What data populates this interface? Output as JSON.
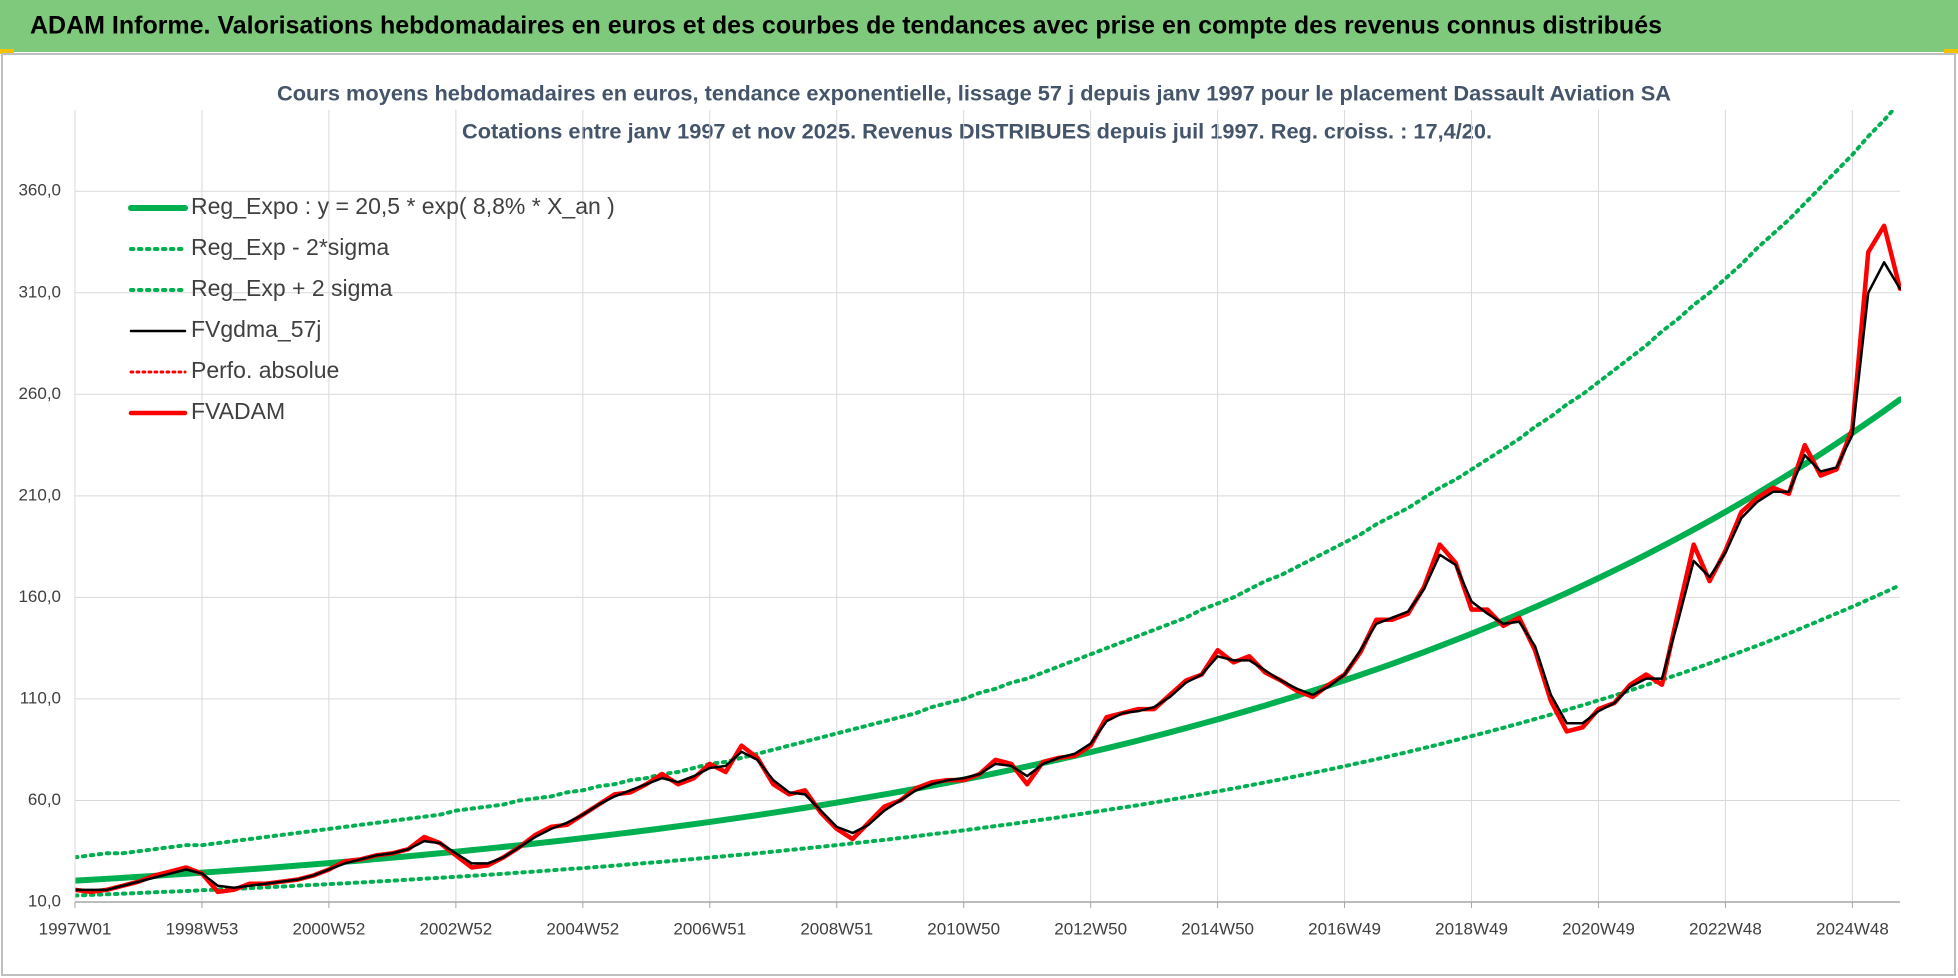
{
  "header": {
    "title": "ADAM Informe. Valorisations hebdomadaires en euros et des courbes de tendances avec prise en compte des revenus connus distribués"
  },
  "chart_data": {
    "type": "line",
    "title": "Cours moyens hebdomadaires en euros, tendance exponentielle, lissage 57 j depuis janv 1997 pour le placement Dassault Aviation SA",
    "subtitle": "Cotations entre janv 1997 et nov 2025. Revenus DISTRIBUES depuis juil 1997. Reg. croiss. : 17,4/20.",
    "categories": [
      "1997W01",
      null,
      null,
      null,
      null,
      null,
      null,
      null,
      "1998W53",
      null,
      null,
      null,
      null,
      null,
      null,
      null,
      "2000W52",
      null,
      null,
      null,
      null,
      null,
      null,
      null,
      "2002W52",
      null,
      null,
      null,
      null,
      null,
      null,
      null,
      "2004W52",
      null,
      null,
      null,
      null,
      null,
      null,
      null,
      "2006W51",
      null,
      null,
      null,
      null,
      null,
      null,
      null,
      "2008W51",
      null,
      null,
      null,
      null,
      null,
      null,
      null,
      "2010W50",
      null,
      null,
      null,
      null,
      null,
      null,
      null,
      "2012W50",
      null,
      null,
      null,
      null,
      null,
      null,
      null,
      "2014W50",
      null,
      null,
      null,
      null,
      null,
      null,
      null,
      "2016W49",
      null,
      null,
      null,
      null,
      null,
      null,
      null,
      "2018W49",
      null,
      null,
      null,
      null,
      null,
      null,
      null,
      "2020W49",
      null,
      null,
      null,
      null,
      null,
      null,
      null,
      "2022W48",
      null,
      null,
      null,
      null,
      null,
      null,
      null,
      "2024W48",
      null,
      null,
      null
    ],
    "ylim": [
      10,
      400
    ],
    "yticks": [
      {
        "value": 10,
        "label": "10,0"
      },
      {
        "value": 60,
        "label": "60,0"
      },
      {
        "value": 110,
        "label": "110,0"
      },
      {
        "value": 160,
        "label": "160,0"
      },
      {
        "value": 210,
        "label": "210,0"
      },
      {
        "value": 260,
        "label": "260,0"
      },
      {
        "value": 310,
        "label": "310,0"
      },
      {
        "value": 360,
        "label": "360,0"
      }
    ],
    "grid": true,
    "legend": "upper left",
    "series": [
      {
        "name": "Reg_Expo : y = 20,5 * exp( 8,8% *  X_an )",
        "color": "#00b050",
        "style": "solid",
        "width": 6,
        "values": [
          20.5,
          20.96,
          21.42,
          21.9,
          22.39,
          22.88,
          23.39,
          23.91,
          24.45,
          24.99,
          25.55,
          26.12,
          26.7,
          27.29,
          27.9,
          28.52,
          29.15,
          29.8,
          30.46,
          31.14,
          31.83,
          32.54,
          33.26,
          34.0,
          34.76,
          35.53,
          36.32,
          37.13,
          37.96,
          38.8,
          39.67,
          40.55,
          41.45,
          42.37,
          43.32,
          44.28,
          45.26,
          46.27,
          47.3,
          48.35,
          49.42,
          50.52,
          51.64,
          52.79,
          53.97,
          55.17,
          56.4,
          57.65,
          58.94,
          60.25,
          61.59,
          62.96,
          64.36,
          65.79,
          67.26,
          68.75,
          70.28,
          71.84,
          73.44,
          75.07,
          76.75,
          78.46,
          80.2,
          81.98,
          83.81,
          85.67,
          87.58,
          89.53,
          91.53,
          93.56,
          95.65,
          97.77,
          99.95,
          102.17,
          104.45,
          106.77,
          109.14,
          111.57,
          114.05,
          116.58,
          119.18,
          121.83,
          124.54,
          127.31,
          130.15,
          133.04,
          136.01,
          139.03,
          142.12,
          145.28,
          148.52,
          151.82,
          155.2,
          158.65,
          162.18,
          165.79,
          169.48,
          173.25,
          177.11,
          181.05,
          185.07,
          189.19,
          193.4,
          197.7,
          202.1,
          206.6,
          211.2,
          215.89,
          220.69,
          225.6,
          230.62,
          235.75,
          240.99,
          246.35,
          251.83,
          257.44
        ]
      },
      {
        "name": "Reg_Exp - 2*sigma",
        "color": "#00b050",
        "style": "dotted",
        "width": 4,
        "values": [
          13.2,
          13.5,
          13.8,
          14.1,
          14.4,
          14.8,
          15.1,
          15.4,
          15.8,
          16.1,
          16.5,
          16.8,
          17.2,
          17.6,
          18.0,
          18.4,
          18.8,
          19.2,
          19.6,
          20.1,
          20.5,
          21.0,
          21.5,
          21.9,
          22.4,
          22.9,
          23.4,
          23.9,
          24.5,
          25.0,
          25.6,
          26.2,
          26.7,
          27.3,
          27.9,
          28.6,
          29.2,
          29.8,
          30.5,
          31.2,
          31.9,
          32.6,
          33.3,
          34.0,
          34.8,
          35.6,
          36.4,
          37.2,
          38.0,
          38.9,
          39.7,
          40.6,
          41.5,
          42.4,
          43.4,
          44.3,
          45.3,
          46.3,
          47.4,
          48.4,
          49.5,
          50.6,
          51.7,
          52.9,
          54.1,
          55.3,
          56.5,
          57.7,
          59.0,
          60.3,
          61.7,
          63.1,
          64.5,
          65.9,
          67.4,
          68.9,
          70.4,
          72.0,
          73.6,
          75.2,
          76.9,
          78.6,
          80.3,
          82.1,
          83.9,
          85.8,
          87.7,
          89.7,
          91.7,
          93.7,
          95.8,
          97.9,
          100.1,
          102.3,
          104.6,
          106.9,
          109.3,
          111.7,
          114.2,
          116.8,
          119.4,
          122.0,
          124.7,
          127.5,
          130.4,
          133.3,
          136.2,
          139.2,
          142.3,
          145.5,
          148.8,
          152.1,
          155.4,
          158.9,
          162.4,
          166.0
        ]
      },
      {
        "name": "Reg_Exp + 2 sigma",
        "color": "#00b050",
        "style": "dotted",
        "width": 4,
        "values": [
          32,
          33,
          34,
          34,
          35,
          36,
          37,
          38,
          38,
          39,
          40,
          41,
          42,
          43,
          44,
          45,
          46,
          47,
          48,
          49,
          50,
          51,
          52,
          53,
          55,
          56,
          57,
          58,
          60,
          61,
          62,
          64,
          65,
          67,
          68,
          70,
          71,
          73,
          74,
          76,
          78,
          79,
          81,
          83,
          85,
          87,
          89,
          91,
          93,
          95,
          97,
          99,
          101,
          103,
          106,
          108,
          110,
          113,
          115,
          118,
          120,
          123,
          126,
          129,
          132,
          135,
          138,
          141,
          144,
          147,
          150,
          154,
          157,
          160,
          164,
          168,
          171,
          175,
          179,
          183,
          187,
          191,
          196,
          200,
          204,
          209,
          214,
          218,
          223,
          228,
          233,
          238,
          244,
          249,
          255,
          260,
          266,
          272,
          278,
          284,
          291,
          297,
          304,
          310,
          317,
          324,
          332,
          339,
          346,
          354,
          362,
          370,
          378,
          387,
          395,
          404
        ]
      },
      {
        "name": "FVgdma_57j",
        "color": "#000000",
        "style": "solid",
        "width": 2.5,
        "values": [
          16,
          16,
          16,
          18,
          20,
          22,
          24,
          26,
          24,
          18,
          17,
          18,
          19,
          20,
          21,
          23,
          26,
          29,
          31,
          33,
          34,
          36,
          40,
          39,
          34,
          29,
          29,
          32,
          37,
          42,
          46,
          49,
          53,
          58,
          62,
          65,
          68,
          71,
          69,
          72,
          76,
          77,
          84,
          80,
          70,
          64,
          63,
          55,
          47,
          44,
          48,
          55,
          60,
          65,
          68,
          70,
          71,
          73,
          78,
          77,
          72,
          78,
          81,
          83,
          88,
          99,
          103,
          104,
          106,
          111,
          118,
          122,
          131,
          129,
          129,
          124,
          119,
          115,
          112,
          116,
          122,
          134,
          147,
          150,
          153,
          164,
          181,
          176,
          158,
          152,
          147,
          148,
          136,
          112,
          98,
          98,
          104,
          108,
          116,
          120,
          120,
          148,
          178,
          170,
          182,
          199,
          207,
          212,
          212,
          230,
          222,
          224,
          240,
          310,
          325,
          312
        ]
      },
      {
        "name": "Perfo. absolue",
        "color": "#ff0000",
        "style": "dotted",
        "width": 3,
        "values": [
          16,
          15,
          16,
          18,
          20,
          23,
          25,
          27,
          24,
          15,
          16,
          19,
          19,
          20,
          21,
          23,
          26,
          30,
          31,
          33,
          34,
          36,
          42,
          39,
          33,
          27,
          28,
          32,
          37,
          43,
          47,
          48,
          53,
          58,
          63,
          64,
          68,
          73,
          68,
          71,
          78,
          74,
          87,
          81,
          68,
          63,
          65,
          54,
          46,
          41,
          49,
          57,
          60,
          66,
          69,
          70,
          70,
          73,
          80,
          78,
          68,
          79,
          81,
          82,
          87,
          101,
          103,
          105,
          105,
          112,
          119,
          122,
          134,
          128,
          131,
          123,
          119,
          114,
          111,
          117,
          122,
          133,
          149,
          149,
          152,
          165,
          186,
          177,
          154,
          154,
          146,
          150,
          134,
          109,
          94,
          96,
          105,
          108,
          117,
          122,
          117,
          152,
          186,
          168,
          183,
          202,
          209,
          214,
          211,
          235,
          220,
          223,
          243,
          330,
          343,
          312
        ]
      },
      {
        "name": "FVADAM",
        "color": "#ff0000",
        "style": "solid",
        "width": 4.5,
        "values": [
          16,
          15,
          16,
          18,
          20,
          23,
          25,
          27,
          24,
          15,
          16,
          19,
          19,
          20,
          21,
          23,
          26,
          30,
          31,
          33,
          34,
          36,
          42,
          39,
          33,
          27,
          28,
          32,
          37,
          43,
          47,
          48,
          53,
          58,
          63,
          64,
          68,
          73,
          68,
          71,
          78,
          74,
          87,
          81,
          68,
          63,
          65,
          54,
          46,
          41,
          49,
          57,
          60,
          66,
          69,
          70,
          70,
          73,
          80,
          78,
          68,
          79,
          81,
          82,
          87,
          101,
          103,
          105,
          105,
          112,
          119,
          122,
          134,
          128,
          131,
          123,
          119,
          114,
          111,
          117,
          122,
          133,
          149,
          149,
          152,
          165,
          186,
          177,
          154,
          154,
          146,
          150,
          134,
          109,
          94,
          96,
          105,
          108,
          117,
          122,
          117,
          152,
          186,
          168,
          183,
          202,
          209,
          214,
          211,
          235,
          220,
          223,
          243,
          330,
          343,
          312
        ]
      }
    ]
  }
}
